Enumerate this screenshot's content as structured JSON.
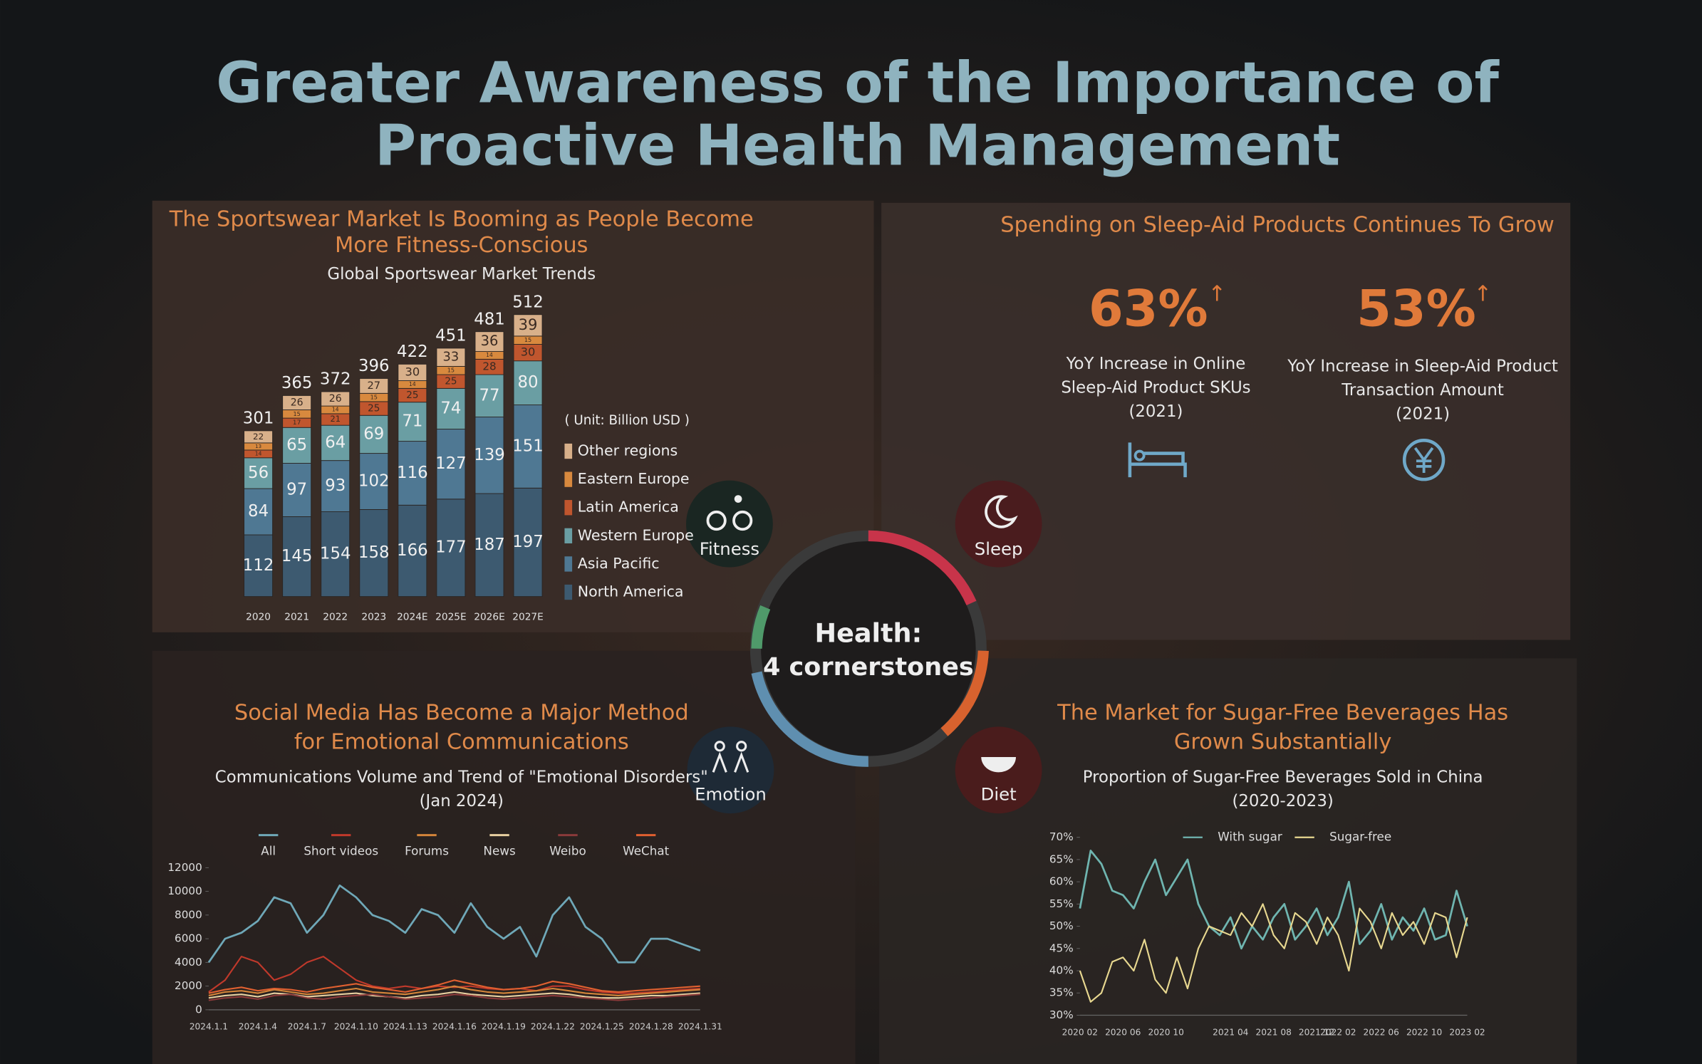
{
  "title": [
    "Greater Awareness of the Importance of",
    "Proactive Health Management"
  ],
  "hub": {
    "center": [
      "Health:",
      "4 cornerstones"
    ],
    "labels": [
      "Fitness",
      "Sleep",
      "Emotion",
      "Diet"
    ]
  },
  "sleep": {
    "heading": "Spending on Sleep-Aid Products Continues To Grow",
    "stats": [
      {
        "value": "63%",
        "lines": [
          "YoY Increase in Online",
          "Sleep-Aid Product SKUs",
          "(2021)"
        ]
      },
      {
        "value": "53%",
        "lines": [
          "YoY Increase in Sleep-Aid Product",
          "Transaction Amount",
          "(2021)"
        ]
      }
    ]
  },
  "chart_data": [
    {
      "type": "bar",
      "stacked": true,
      "title": [
        "The Sportswear Market Is Booming as People Become",
        "More Fitness-Conscious"
      ],
      "subtitle": "Global Sportswear Market Trends",
      "unit": "( Unit: Billion USD )",
      "categories": [
        "2020",
        "2021",
        "2022",
        "2023",
        "2024E",
        "2025E",
        "2026E",
        "2027E"
      ],
      "series": [
        {
          "name": "North America",
          "color": "#3d5a70",
          "values": [
            112,
            145,
            154,
            158,
            166,
            177,
            187,
            197
          ]
        },
        {
          "name": "Asia Pacific",
          "color": "#4f7893",
          "values": [
            84,
            97,
            93,
            102,
            116,
            127,
            139,
            151
          ]
        },
        {
          "name": "Western Europe",
          "color": "#6a9ea3",
          "values": [
            56,
            65,
            64,
            69,
            71,
            74,
            77,
            80
          ]
        },
        {
          "name": "Latin America",
          "color": "#c0562e",
          "values": [
            14,
            17,
            21,
            25,
            25,
            25,
            28,
            30
          ]
        },
        {
          "name": "Eastern Europe",
          "color": "#d8893e",
          "values": [
            13,
            15,
            14,
            15,
            14,
            15,
            14,
            15
          ]
        },
        {
          "name": "Other regions",
          "color": "#d8b08a",
          "values": [
            22,
            26,
            26,
            27,
            30,
            33,
            36,
            39
          ]
        }
      ],
      "totals": [
        301,
        365,
        372,
        396,
        422,
        451,
        481,
        512
      ],
      "ylim": [
        0,
        520
      ]
    },
    {
      "type": "line",
      "title": [
        "Social Media Has Become a Major Method",
        "for Emotional Communications"
      ],
      "subtitle": [
        "Communications Volume and Trend of \"Emotional Disorders\"",
        "(Jan 2024)"
      ],
      "categories": [
        "2024.1.1",
        null,
        null,
        "2024.1.4",
        null,
        null,
        "2024.1.7",
        null,
        null,
        "2024.1.10",
        null,
        null,
        "2024.1.13",
        null,
        null,
        "2024.1.16",
        null,
        null,
        "2024.1.19",
        null,
        null,
        "2024.1.22",
        null,
        null,
        "2024.1.25",
        null,
        null,
        "2024.1.28",
        null,
        null,
        "2024.1.31"
      ],
      "series": [
        {
          "name": "All",
          "color": "#6fa8b8",
          "values": [
            4000,
            6000,
            6500,
            7500,
            9500,
            9000,
            6500,
            8000,
            10500,
            9500,
            8000,
            7500,
            6500,
            8500,
            8000,
            6500,
            9000,
            7000,
            6000,
            7000,
            4500,
            8000,
            9500,
            7000,
            6000,
            4000,
            4000,
            6000,
            6000,
            5500,
            5000
          ]
        },
        {
          "name": "Short videos",
          "color": "#c0392b",
          "values": [
            1500,
            2500,
            4500,
            4000,
            2500,
            3000,
            4000,
            4500,
            3500,
            2500,
            2000,
            1800,
            2000,
            1800,
            2000,
            1900,
            2000,
            1800,
            1700,
            1800,
            1600,
            2000,
            2000,
            1700,
            1500,
            1400,
            1400,
            1500,
            1600,
            1700,
            1800
          ]
        },
        {
          "name": "Forums",
          "color": "#d4853a",
          "values": [
            1200,
            1500,
            1600,
            1400,
            1700,
            1500,
            1300,
            1400,
            1600,
            1800,
            1500,
            1400,
            1300,
            1500,
            1700,
            2000,
            1700,
            1500,
            1400,
            1500,
            1600,
            1800,
            1600,
            1400,
            1300,
            1200,
            1300,
            1400,
            1500,
            1600,
            1700
          ]
        },
        {
          "name": "News",
          "color": "#e8d0a0",
          "values": [
            1000,
            1200,
            1300,
            1100,
            1400,
            1300,
            1100,
            1200,
            1300,
            1400,
            1200,
            1100,
            1000,
            1200,
            1300,
            1500,
            1300,
            1200,
            1100,
            1200,
            1300,
            1400,
            1300,
            1100,
            1000,
            1000,
            1100,
            1200,
            1200,
            1300,
            1400
          ]
        },
        {
          "name": "Weibo",
          "color": "#8a3a3a",
          "values": [
            800,
            1000,
            1100,
            900,
            1200,
            1300,
            1000,
            900,
            1100,
            1200,
            1300,
            1100,
            900,
            1000,
            1100,
            1300,
            1200,
            1000,
            900,
            1000,
            1100,
            1200,
            1100,
            1000,
            900,
            800,
            900,
            1000,
            1100,
            1200,
            1300
          ]
        },
        {
          "name": "WeChat",
          "color": "#e06030",
          "values": [
            1400,
            1700,
            1900,
            1600,
            1800,
            1700,
            1500,
            1800,
            2000,
            2200,
            1900,
            1700,
            1500,
            1800,
            2100,
            2500,
            2200,
            1900,
            1700,
            1800,
            2000,
            2400,
            2200,
            1900,
            1600,
            1500,
            1600,
            1700,
            1800,
            1900,
            2000
          ]
        }
      ],
      "ylim": [
        0,
        12000
      ],
      "yticks": [
        0,
        2000,
        4000,
        6000,
        8000,
        10000,
        12000
      ]
    },
    {
      "type": "line",
      "title": [
        "The Market for Sugar-Free Beverages Has",
        "Grown Substantially"
      ],
      "subtitle": [
        "Proportion of Sugar-Free Beverages Sold in China",
        "(2020-2023)"
      ],
      "categories": [
        "2020 02",
        null,
        null,
        null,
        "2020 06",
        null,
        null,
        null,
        "2020 10",
        null,
        null,
        null,
        null,
        null,
        "2021 04",
        null,
        null,
        null,
        "2021 08",
        null,
        null,
        null,
        "2021 12",
        null,
        "2022 02",
        null,
        null,
        null,
        "2022 06",
        null,
        null,
        null,
        "2022 10",
        null,
        null,
        null,
        "2023 02"
      ],
      "series": [
        {
          "name": "With sugar",
          "color": "#6fb5b0",
          "values": [
            54,
            67,
            64,
            58,
            57,
            54,
            60,
            65,
            57,
            61,
            65,
            55,
            50,
            48,
            52,
            45,
            50,
            47,
            52,
            55,
            47,
            50,
            54,
            48,
            52,
            60,
            46,
            49,
            55,
            47,
            52,
            49,
            54,
            47,
            48,
            58,
            50
          ]
        },
        {
          "name": "Sugar-free",
          "color": "#e8d890",
          "values": [
            40,
            33,
            35,
            42,
            43,
            40,
            47,
            38,
            35,
            43,
            36,
            45,
            50,
            49,
            48,
            53,
            50,
            55,
            48,
            45,
            53,
            51,
            46,
            52,
            48,
            40,
            54,
            51,
            45,
            53,
            48,
            51,
            46,
            53,
            52,
            43,
            52
          ]
        }
      ],
      "ylim": [
        30,
        70
      ],
      "yticks": [
        {
          "value": 30,
          "label": "30%"
        },
        {
          "value": 35,
          "label": "35%"
        },
        {
          "value": 40,
          "label": "40%"
        },
        {
          "value": 45,
          "label": "45%"
        },
        {
          "value": 50,
          "label": "50%"
        },
        {
          "value": 55,
          "label": "55%"
        },
        {
          "value": 60,
          "label": "60%"
        },
        {
          "value": 65,
          "label": "65%"
        },
        {
          "value": 70,
          "label": "70%"
        }
      ]
    }
  ]
}
